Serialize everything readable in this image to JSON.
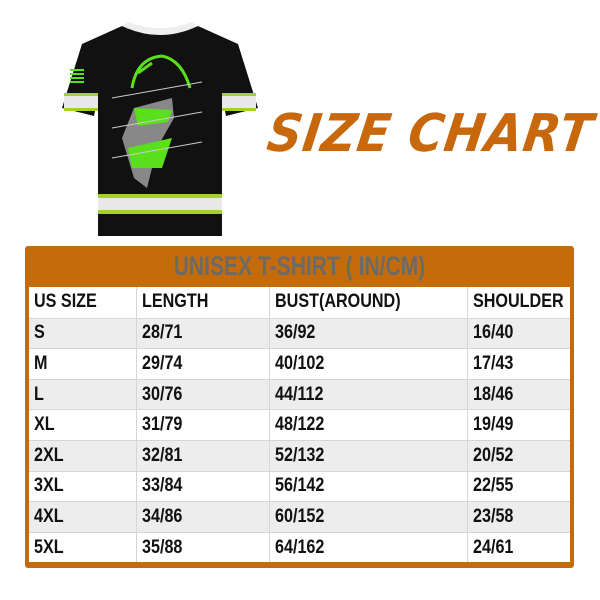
{
  "title": "SIZE CHART",
  "product_image": "black t-shirt with green deer graphic",
  "table": {
    "caption": "UNISEX T-SHIRT ( IN/CM)",
    "headers": [
      "US SIZE",
      "LENGTH",
      "BUST(AROUND)",
      "SHOULDER"
    ],
    "rows": [
      [
        "S",
        "28/71",
        "36/92",
        "16/40"
      ],
      [
        "M",
        "29/74",
        "40/102",
        "17/43"
      ],
      [
        "L",
        "30/76",
        "44/112",
        "18/46"
      ],
      [
        "XL",
        "31/79",
        "48/122",
        "19/49"
      ],
      [
        "2XL",
        "32/81",
        "52/132",
        "20/52"
      ],
      [
        "3XL",
        "33/84",
        "56/142",
        "22/55"
      ],
      [
        "4XL",
        "34/86",
        "60/152",
        "23/58"
      ],
      [
        "5XL",
        "35/88",
        "64/162",
        "24/61"
      ]
    ]
  },
  "colors": {
    "accent": "#c46c0b",
    "title": "#c8680c",
    "row_alt": "#ededed",
    "shirt_green": "#5ae01a"
  }
}
